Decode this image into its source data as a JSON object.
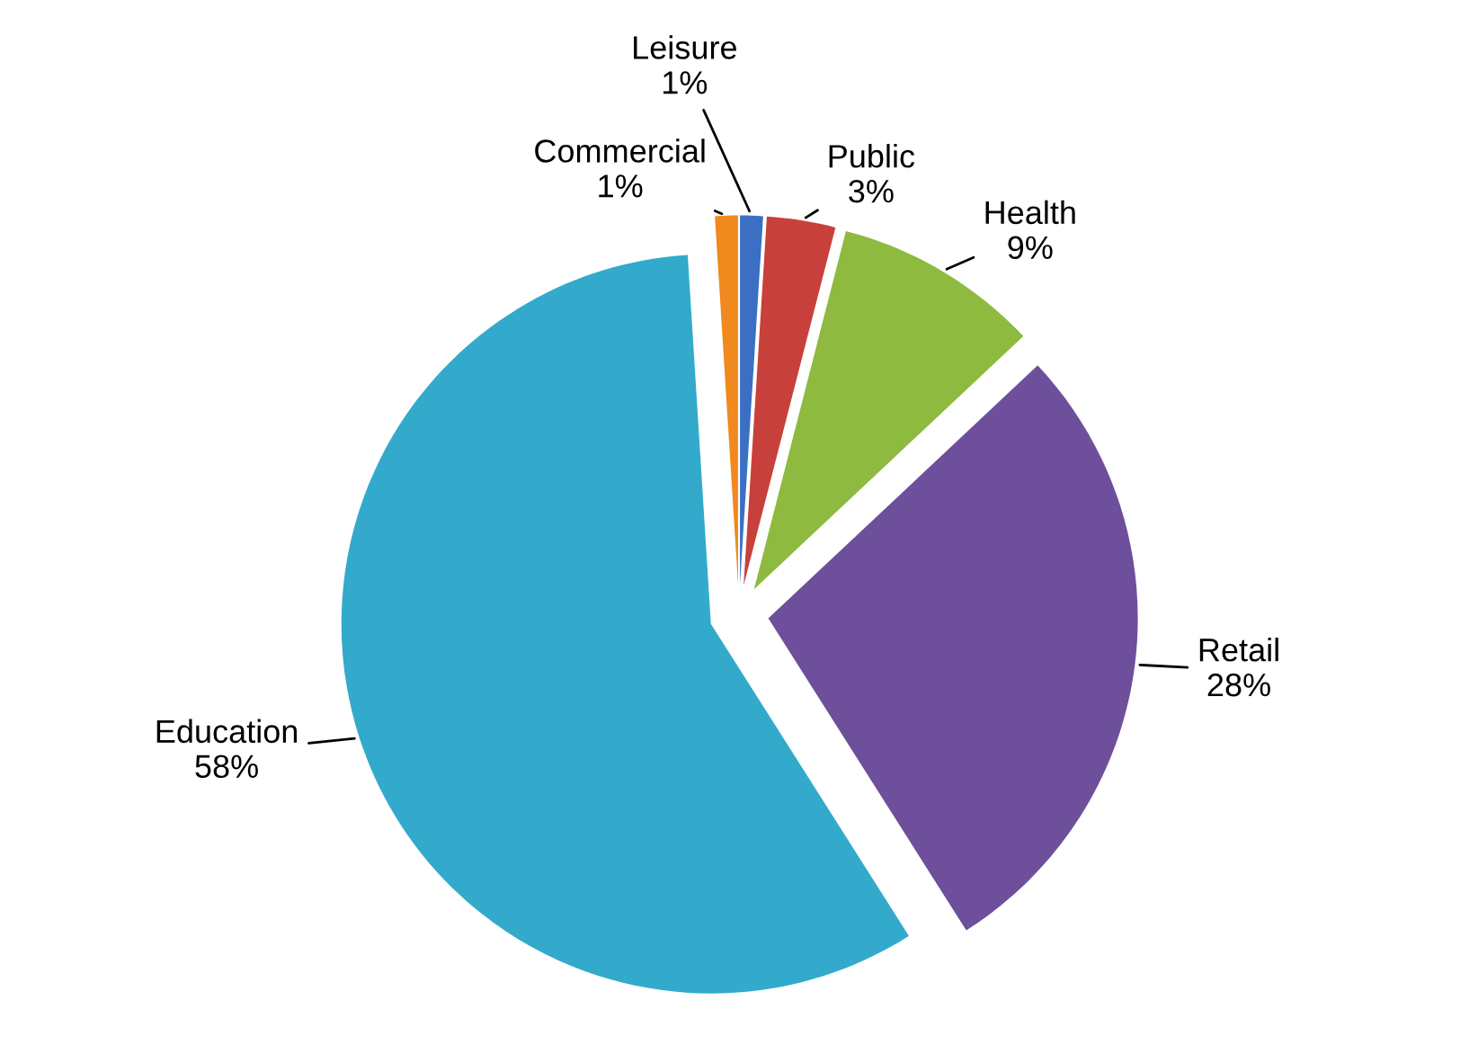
{
  "chart_data": {
    "type": "pie",
    "categories": [
      "Leisure",
      "Public",
      "Health",
      "Retail",
      "Education",
      "Commercial"
    ],
    "values": [
      1,
      3,
      9,
      28,
      58,
      1
    ],
    "value_labels": [
      "1%",
      "3%",
      "9%",
      "28%",
      "58%",
      "1%"
    ],
    "colors": [
      "#3b6fc4",
      "#c8403b",
      "#8dba3f",
      "#6e4f9c",
      "#33aacb",
      "#f0891e"
    ],
    "legend": false
  }
}
